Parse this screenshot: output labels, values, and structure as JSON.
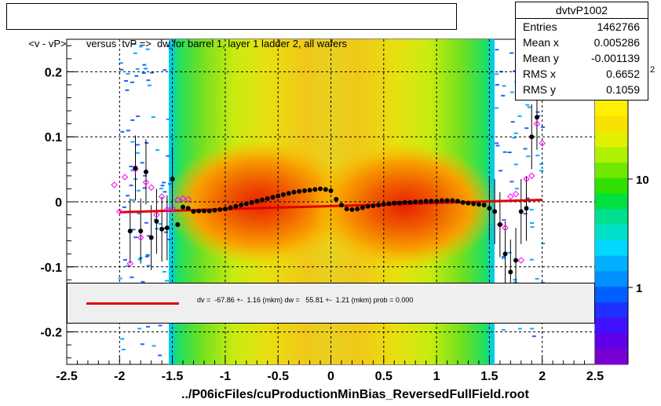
{
  "title": "<v - vP>       versus  tvP =>  dw for barrel 1, layer 1 ladder 2, all wafers",
  "stats": {
    "name": "dvtvP1002",
    "rows": [
      {
        "key": "Entries",
        "value": "1462766"
      },
      {
        "key": "Mean x",
        "value": "0.005286"
      },
      {
        "key": "Mean y",
        "value": "-0.001139"
      },
      {
        "key": "RMS x",
        "value": "0.6652"
      },
      {
        "key": "RMS y",
        "value": "0.1059"
      }
    ]
  },
  "fit_text": "dv =  -67.86 +-  1.16 (mkm) dw =   55.81 +-  1.21 (mkm) prob = 0.000",
  "footer": "../P06icFiles/cuProductionMinBias_ReversedFullField.root",
  "colors": {
    "fit_line": "#e00000",
    "profile_points": "#000000",
    "alt_points": "#ff00ff"
  },
  "chart_data": {
    "type": "heatmap",
    "xlim": [
      -2.5,
      2.5
    ],
    "ylim": [
      -0.25,
      0.25
    ],
    "x_ticks": [
      -2.5,
      -2,
      -1.5,
      -1,
      -0.5,
      0,
      0.5,
      1,
      1.5,
      2,
      2.5
    ],
    "x_tick_labels": [
      "-2.5",
      "-2",
      "-1.5",
      "-1",
      "-0.5",
      "0",
      "0.5",
      "1",
      "1.5",
      "2",
      "2.5"
    ],
    "y_ticks": [
      -0.2,
      -0.1,
      0,
      0.1,
      0.2
    ],
    "y_tick_labels": [
      "-0.2",
      "-0.1",
      "0",
      "0.1",
      "0.2"
    ],
    "grid": true,
    "colorbar_labels": [
      {
        "value": 10,
        "label": "10"
      },
      {
        "value": 1,
        "label": "1"
      }
    ],
    "colorbar_partial_label": "2",
    "profile": {
      "x": [
        -1.9,
        -1.85,
        -1.8,
        -1.75,
        -1.7,
        -1.65,
        -1.6,
        -1.55,
        -1.5,
        -1.45,
        -1.4,
        -1.35,
        -1.3,
        -1.25,
        -1.2,
        -1.15,
        -1.1,
        -1.05,
        -1,
        -0.95,
        -0.9,
        -0.85,
        -0.8,
        -0.75,
        -0.7,
        -0.65,
        -0.6,
        -0.55,
        -0.5,
        -0.45,
        -0.4,
        -0.35,
        -0.3,
        -0.25,
        -0.2,
        -0.15,
        -0.1,
        -0.05,
        0,
        0.05,
        0.1,
        0.15,
        0.2,
        0.25,
        0.3,
        0.35,
        0.4,
        0.45,
        0.5,
        0.55,
        0.6,
        0.65,
        0.7,
        0.75,
        0.8,
        0.85,
        0.9,
        0.95,
        1,
        1.05,
        1.1,
        1.15,
        1.2,
        1.25,
        1.3,
        1.35,
        1.4,
        1.45,
        1.5,
        1.55,
        1.6,
        1.65,
        1.7,
        1.75,
        1.8,
        1.85,
        1.9,
        1.95
      ],
      "y": [
        -0.045,
        0.052,
        -0.045,
        0.046,
        -0.055,
        -0.03,
        -0.042,
        -0.04,
        0.035,
        -0.035,
        -0.008,
        -0.01,
        -0.015,
        -0.014,
        -0.014,
        -0.014,
        -0.013,
        -0.012,
        -0.011,
        -0.009,
        -0.007,
        -0.005,
        -0.003,
        -0.001,
        0.001,
        0.003,
        0.005,
        0.007,
        0.009,
        0.011,
        0.013,
        0.015,
        0.016,
        0.017,
        0.018,
        0.019,
        0.02,
        0.019,
        0.017,
        0.004,
        -0.005,
        -0.011,
        -0.012,
        -0.011,
        -0.009,
        -0.007,
        -0.006,
        -0.005,
        -0.004,
        -0.003,
        -0.002,
        -0.002,
        -0.001,
        -0.001,
        0,
        0,
        0.001,
        0.001,
        0.001,
        0.002,
        0.002,
        0.002,
        0.001,
        -0.001,
        -0.002,
        -0.003,
        -0.004,
        -0.005,
        -0.01,
        -0.015,
        -0.035,
        -0.08,
        -0.108,
        -0.09,
        -0.015,
        -0.01,
        0.1,
        0.13
      ]
    },
    "profile_alt": {
      "x": [
        -2.05,
        -2,
        -1.95,
        -1.9,
        -1.85,
        -1.8,
        -1.75,
        -1.7,
        -1.65,
        -1.6,
        -1.55,
        -1.5,
        -1.45,
        -1.4,
        -1.35,
        1.6,
        1.65,
        1.7,
        1.75,
        1.8,
        1.85,
        1.9,
        1.95,
        2
      ],
      "y": [
        0.026,
        -0.015,
        0.038,
        -0.095,
        0.05,
        -0.055,
        0.03,
        0.022,
        -0.02,
        0.008,
        -0.012,
        -0.01,
        0.003,
        0.005,
        0.004,
        -0.035,
        -0.04,
        0.008,
        0.012,
        -0.09,
        0.035,
        0.04,
        0.12,
        0.09
      ]
    },
    "fit_line": {
      "x": [
        -2,
        2
      ],
      "y": [
        -0.016,
        0.003
      ]
    }
  }
}
